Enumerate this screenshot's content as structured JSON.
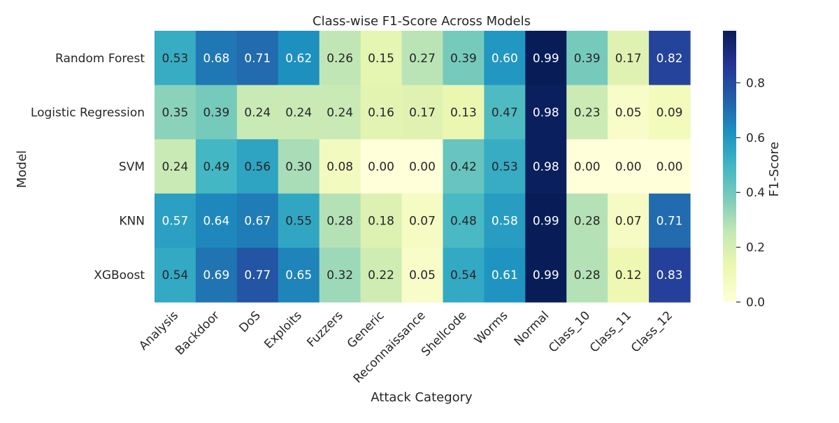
{
  "chart_data": {
    "type": "heatmap",
    "title": "Class-wise F1-Score Across Models",
    "xlabel": "Attack Category",
    "ylabel": "Model",
    "colorbar_label": "F1-Score",
    "colormap": "YlGnBu",
    "colormap_stops": [
      "#ffffd9",
      "#edf8b1",
      "#c7e9b4",
      "#7fcdbb",
      "#41b6c4",
      "#1d91c0",
      "#225ea8",
      "#253494",
      "#081d58"
    ],
    "x_categories": [
      "Analysis",
      "Backdoor",
      "DoS",
      "Exploits",
      "Fuzzers",
      "Generic",
      "Reconnaissance",
      "Shellcode",
      "Worms",
      "Normal",
      "Class_10",
      "Class_11",
      "Class_12"
    ],
    "y_categories": [
      "Random Forest",
      "Logistic Regression",
      "SVM",
      "KNN",
      "XGBoost"
    ],
    "values": [
      [
        0.53,
        0.68,
        0.71,
        0.62,
        0.26,
        0.15,
        0.27,
        0.39,
        0.6,
        0.99,
        0.39,
        0.17,
        0.82
      ],
      [
        0.35,
        0.39,
        0.24,
        0.24,
        0.24,
        0.16,
        0.17,
        0.13,
        0.47,
        0.98,
        0.23,
        0.05,
        0.09
      ],
      [
        0.24,
        0.49,
        0.56,
        0.3,
        0.08,
        0.0,
        0.0,
        0.42,
        0.53,
        0.98,
        0.0,
        0.0,
        0.0
      ],
      [
        0.57,
        0.64,
        0.67,
        0.55,
        0.28,
        0.18,
        0.07,
        0.48,
        0.58,
        0.99,
        0.28,
        0.07,
        0.71
      ],
      [
        0.54,
        0.69,
        0.77,
        0.65,
        0.32,
        0.22,
        0.05,
        0.54,
        0.61,
        0.99,
        0.28,
        0.12,
        0.83
      ]
    ],
    "value_format": "2 decimals",
    "vmin": 0.0,
    "vmax": 0.99,
    "colorbar_ticks": [
      "0.0",
      "0.2",
      "0.4",
      "0.6",
      "0.8"
    ],
    "grid": false
  }
}
